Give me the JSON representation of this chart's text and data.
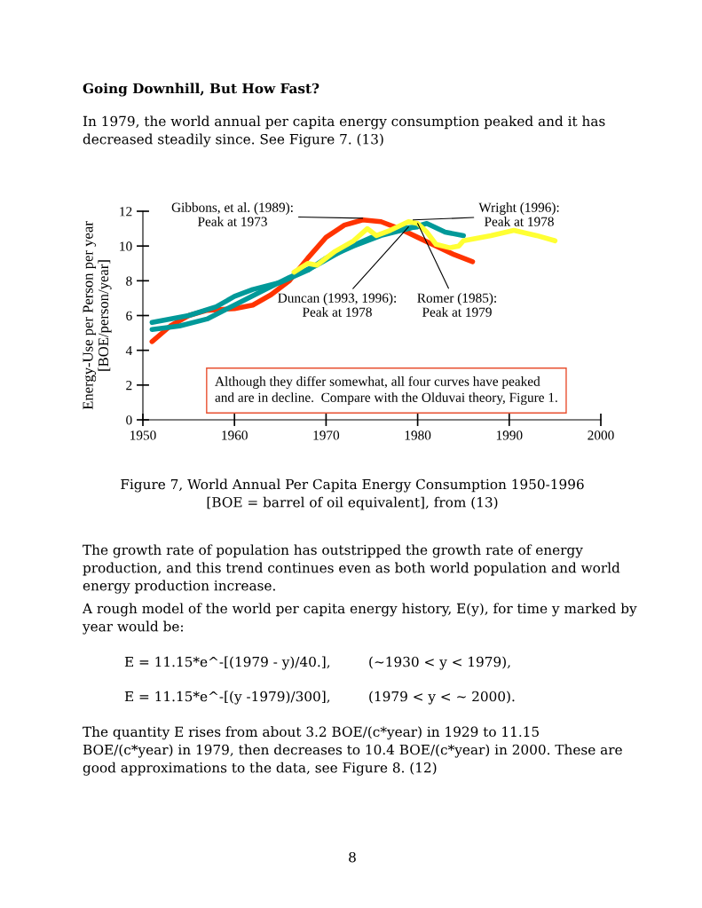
{
  "chart_data": {
    "type": "line",
    "title": "Going Downhill, But How Fast?",
    "subtitle": "In 1979, the world annual per capita energy consumption peaked and it has\ndecreased steadily since. See Figure 7. (13)",
    "ylabel": "Energy-Use per Person per year\n[BOE/person/year]",
    "xlim": [
      1950,
      2000
    ],
    "xticks": [
      1950,
      1960,
      1970,
      1980,
      1990,
      2000
    ],
    "ylim": [
      0,
      12
    ],
    "yticks": [
      0,
      2,
      4,
      6,
      8,
      10,
      12
    ],
    "grid": false,
    "legend": false,
    "marker": "none",
    "line_style": "solid",
    "series": [
      {
        "color": "#ff3300",
        "x": [
          1951,
          1953,
          1955,
          1957,
          1960,
          1962,
          1964,
          1966,
          1968,
          1970,
          1972,
          1974,
          1976,
          1978,
          1980,
          1982,
          1984,
          1986
        ],
        "values": [
          4.5,
          5.4,
          6.0,
          6.3,
          6.4,
          6.6,
          7.2,
          8.0,
          9.3,
          10.5,
          11.2,
          11.5,
          11.4,
          11.0,
          10.5,
          10.0,
          9.5,
          9.1
        ]
      },
      {
        "color": "#009999",
        "x": [
          1951,
          1955,
          1958,
          1960,
          1962,
          1965,
          1968,
          1970,
          1973,
          1976,
          1979,
          1981,
          1983,
          1985
        ],
        "values": [
          5.6,
          6.0,
          6.5,
          7.1,
          7.5,
          7.9,
          8.6,
          9.3,
          10.0,
          10.6,
          11.0,
          11.3,
          10.8,
          10.6
        ]
      },
      {
        "color": "#009999",
        "x": [
          1951,
          1954,
          1957,
          1960,
          1963,
          1966,
          1969,
          1972,
          1975,
          1978,
          1980
        ],
        "values": [
          5.2,
          5.4,
          5.8,
          6.6,
          7.4,
          8.2,
          8.9,
          9.8,
          10.5,
          11.0,
          11.1
        ]
      },
      {
        "color": "#ffff33",
        "x": [
          1966.5,
          1968,
          1969,
          1971,
          1973,
          1974.5,
          1975.5,
          1977,
          1979,
          1980,
          1981,
          1982,
          1983.5,
          1984.5,
          1985,
          1988,
          1990.5,
          1993,
          1995
        ],
        "values": [
          8.5,
          9.0,
          8.9,
          9.7,
          10.3,
          11.0,
          10.6,
          10.9,
          11.4,
          11.3,
          10.8,
          10.1,
          9.9,
          10.0,
          10.3,
          10.6,
          10.9,
          10.6,
          10.3
        ]
      }
    ],
    "annotations": [
      {
        "text": "Gibbons, et al. (1989):\nPeak at 1973",
        "x": 1974,
        "y": 11.6
      },
      {
        "text": "Wright (1996):\nPeak at 1978",
        "x": 1979.5,
        "y": 11.5
      },
      {
        "text": "Duncan (1993, 1996):\nPeak at 1978",
        "x": 1979,
        "y": 11.1
      },
      {
        "text": "Romer (1985):\nPeak at 1979",
        "x": 1980,
        "y": 11.3
      },
      "Although they differ somewhat, all four curves have peaked\nand are in decline.  Compare with the Olduvai theory, Figure 1.",
      "Figure 7, World Annual Per Capita Energy Consumption 1950-1996\n[BOE = barrel of oil equivalent], from (13)",
      "The growth rate of population has outstripped the growth rate of energy\nproduction, and this trend continues even as both world population and world\nenergy production increase.",
      "A rough model of the world per capita energy history, E(y), for time y marked by\nyear would be:",
      "E = 11.15*e^-[(1979 - y)/40.],",
      "(~1930 < y < 1979),",
      "E = 11.15*e^-[(y -1979)/300],",
      "(1979 < y < ~ 2000).",
      "The quantity E rises from about 3.2 BOE/(c*year) in 1929 to 11.15\nBOE/(c*year) in 1979, then decreases to 10.4 BOE/(c*year) in 2000. These are\ngood approximations to the data, see Figure 8. (12)",
      "8"
    ]
  }
}
